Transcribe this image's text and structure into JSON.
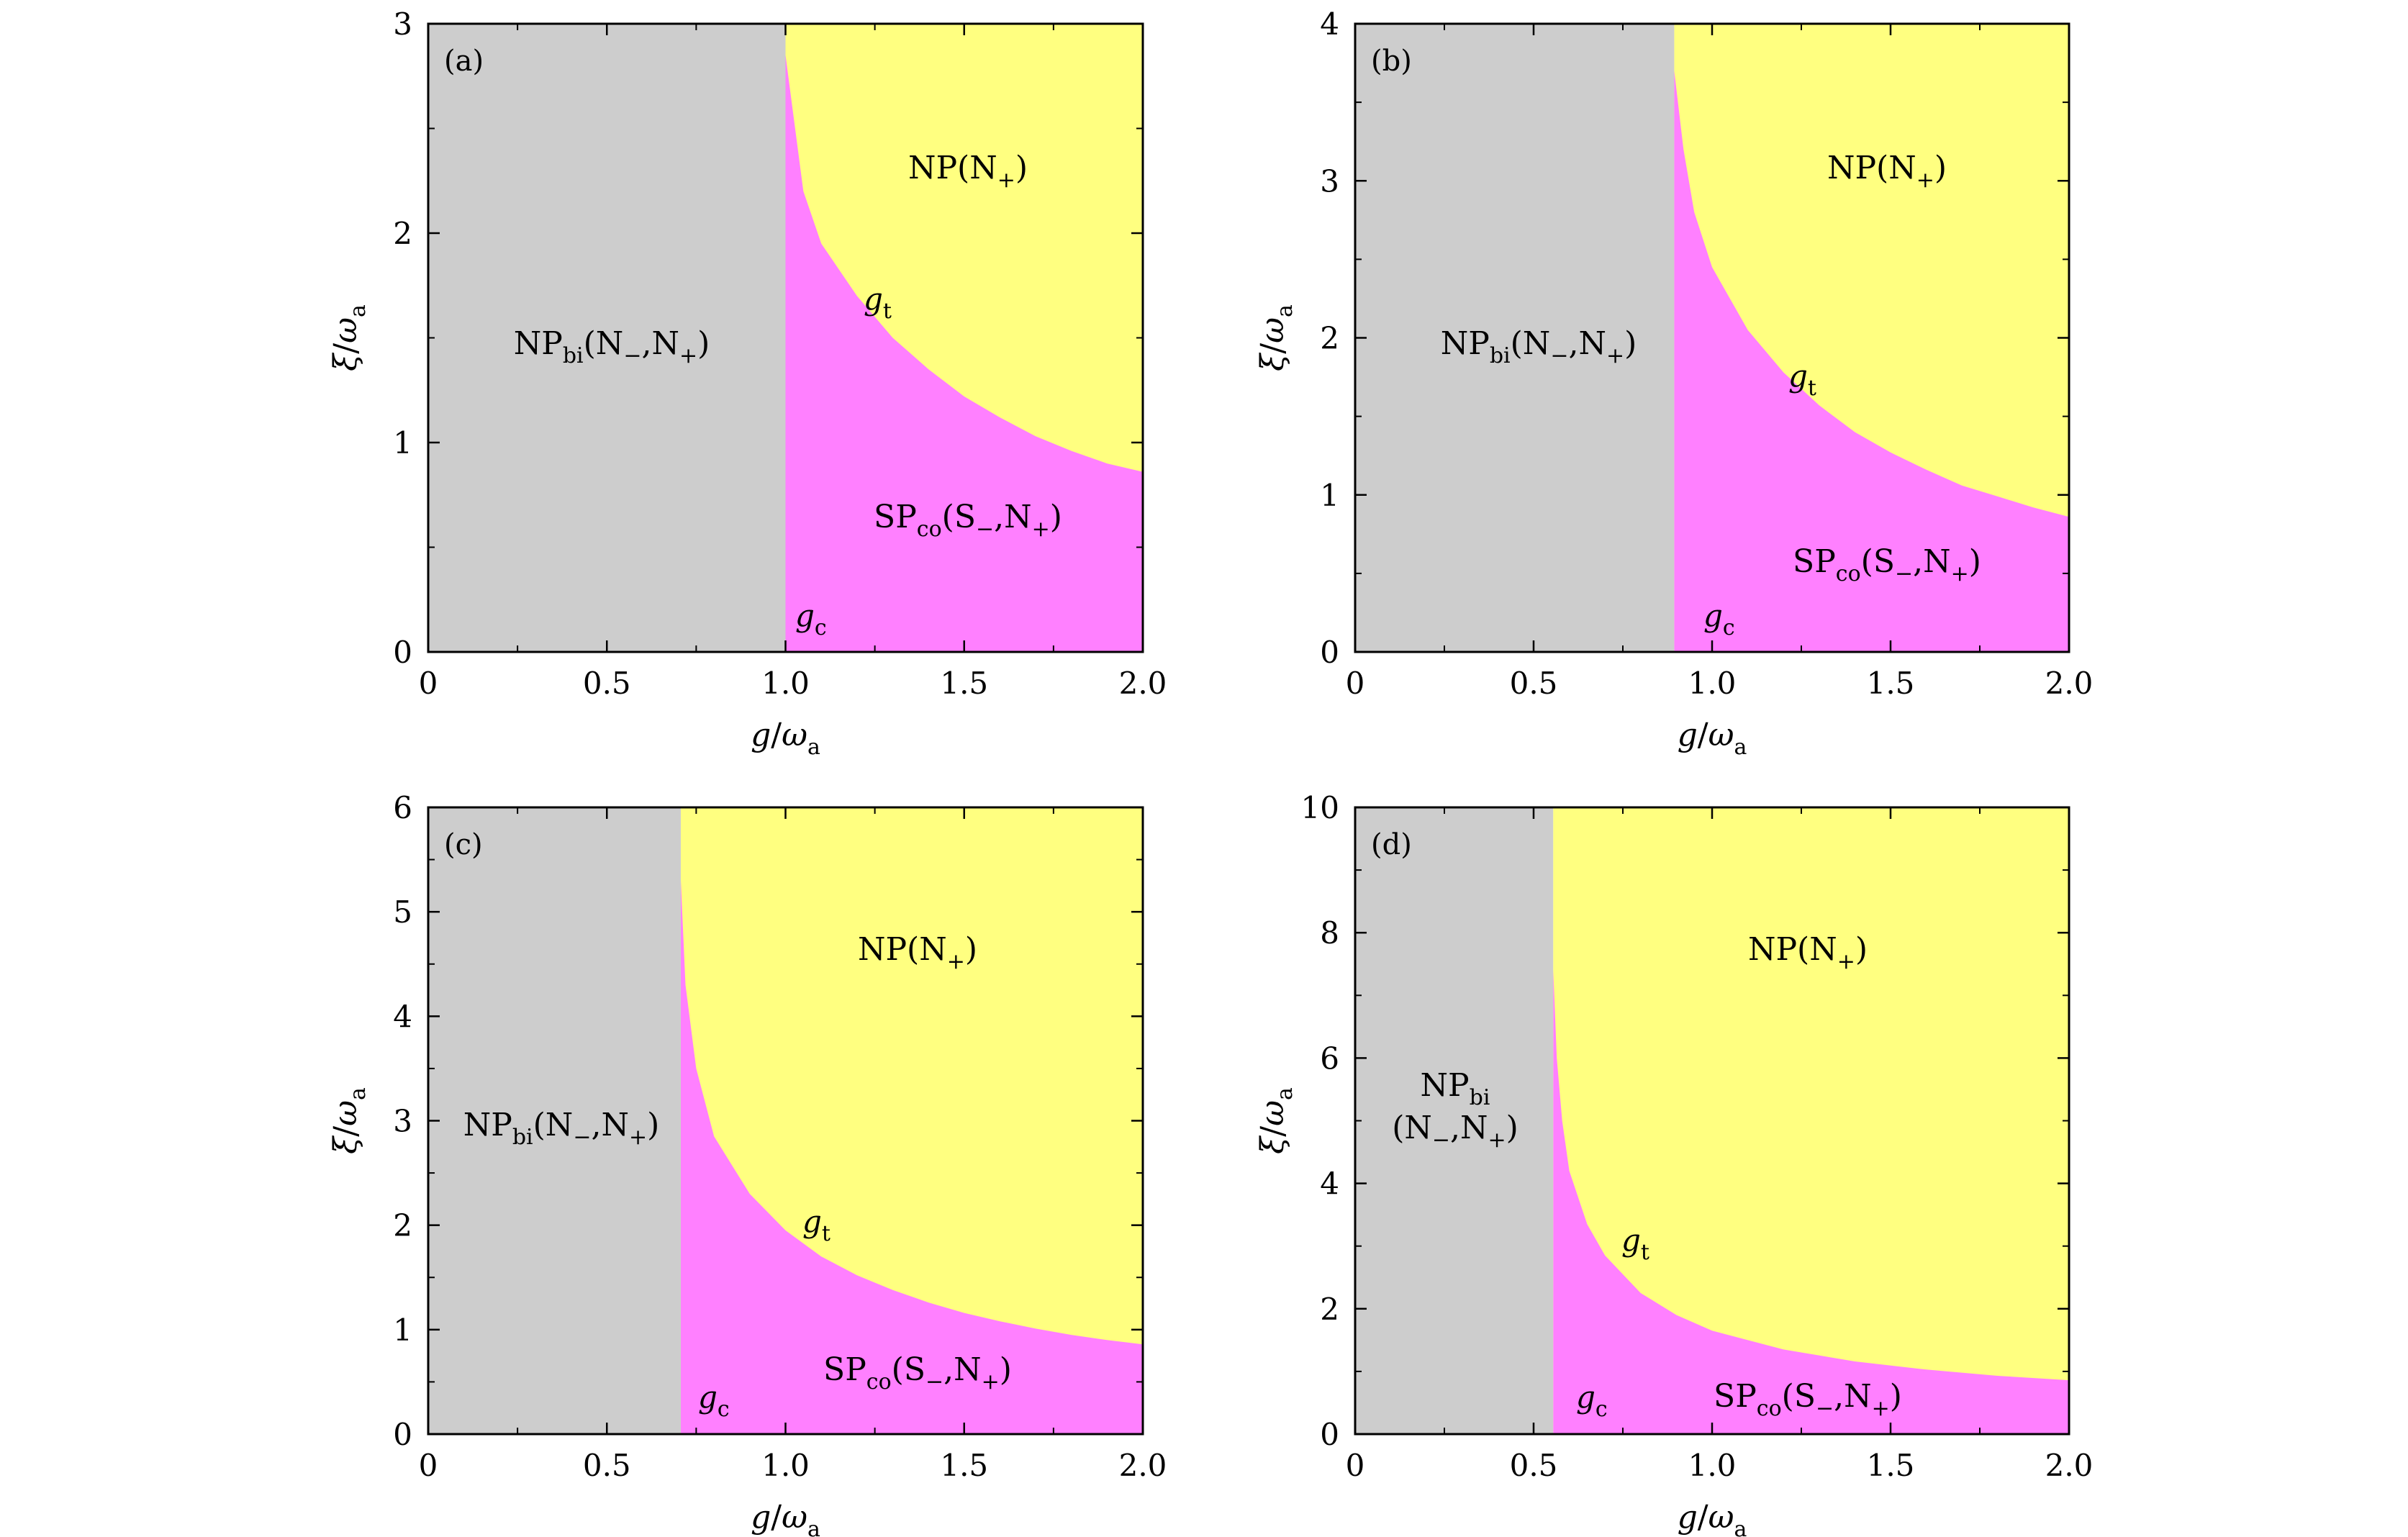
{
  "colors": {
    "gray": "#cdcdcd",
    "yellow": "#ffff80",
    "magenta": "#ff80ff",
    "axis": "#000000"
  },
  "chart_data": [
    {
      "type": "area",
      "panel_label": "(a)",
      "xlabel": {
        "var": "g",
        "sep": "/",
        "omega": "ω",
        "sub": "a"
      },
      "ylabel": {
        "var": "ξ",
        "sep": "/",
        "omega": "ω",
        "sub": "a"
      },
      "xlim": [
        0,
        2.0
      ],
      "ylim": [
        0,
        3
      ],
      "x_ticks": [
        "0",
        "0.5",
        "1.0",
        "1.5",
        "2.0"
      ],
      "y_ticks": [
        "0",
        "1",
        "2",
        "3"
      ],
      "g_c": 1.0,
      "g_t_curve": [
        [
          1.0,
          2.85
        ],
        [
          1.05,
          2.2
        ],
        [
          1.1,
          1.95
        ],
        [
          1.2,
          1.7
        ],
        [
          1.3,
          1.5
        ],
        [
          1.4,
          1.35
        ],
        [
          1.5,
          1.22
        ],
        [
          1.6,
          1.12
        ],
        [
          1.7,
          1.03
        ],
        [
          1.8,
          0.96
        ],
        [
          1.9,
          0.9
        ],
        [
          2.0,
          0.86
        ]
      ],
      "labels": {
        "bi": {
          "main": "NP",
          "sub": "bi",
          "rest": "(N",
          "minus": "−",
          "mid": ",N",
          "plus": "+",
          "close": ")"
        },
        "np": {
          "main": "NP(N",
          "plus": "+",
          "close": ")"
        },
        "sp": {
          "main": "SP",
          "sub": "co",
          "rest": "(S",
          "minus": "−",
          "mid": ",N",
          "plus": "+",
          "close": ")"
        },
        "gt": {
          "var": "g",
          "sub": "t"
        },
        "gc": {
          "var": "g",
          "sub": "c"
        }
      }
    },
    {
      "type": "area",
      "panel_label": "(b)",
      "xlabel": {
        "var": "g",
        "sep": "/",
        "omega": "ω",
        "sub": "a"
      },
      "ylabel": {
        "var": "ξ",
        "sep": "/",
        "omega": "ω",
        "sub": "a"
      },
      "xlim": [
        0,
        2.0
      ],
      "ylim": [
        0,
        4
      ],
      "x_ticks": [
        "0",
        "0.5",
        "1.0",
        "1.5",
        "2.0"
      ],
      "y_ticks": [
        "0",
        "1",
        "2",
        "3",
        "4"
      ],
      "g_c": 0.894,
      "g_t_curve": [
        [
          0.894,
          3.7
        ],
        [
          0.92,
          3.2
        ],
        [
          0.95,
          2.8
        ],
        [
          1.0,
          2.45
        ],
        [
          1.1,
          2.05
        ],
        [
          1.2,
          1.78
        ],
        [
          1.3,
          1.57
        ],
        [
          1.4,
          1.4
        ],
        [
          1.5,
          1.27
        ],
        [
          1.6,
          1.16
        ],
        [
          1.7,
          1.06
        ],
        [
          1.8,
          0.99
        ],
        [
          1.9,
          0.92
        ],
        [
          2.0,
          0.86
        ]
      ],
      "labels": {
        "bi": {
          "main": "NP",
          "sub": "bi",
          "rest": "(N",
          "minus": "−",
          "mid": ",N",
          "plus": "+",
          "close": ")"
        },
        "np": {
          "main": "NP(N",
          "plus": "+",
          "close": ")"
        },
        "sp": {
          "main": "SP",
          "sub": "co",
          "rest": "(S",
          "minus": "−",
          "mid": ",N",
          "plus": "+",
          "close": ")"
        },
        "gt": {
          "var": "g",
          "sub": "t"
        },
        "gc": {
          "var": "g",
          "sub": "c"
        }
      }
    },
    {
      "type": "area",
      "panel_label": "(c)",
      "xlabel": {
        "var": "g",
        "sep": "/",
        "omega": "ω",
        "sub": "a"
      },
      "ylabel": {
        "var": "ξ",
        "sep": "/",
        "omega": "ω",
        "sub": "a"
      },
      "xlim": [
        0,
        2.0
      ],
      "ylim": [
        0,
        6
      ],
      "x_ticks": [
        "0",
        "0.5",
        "1.0",
        "1.5",
        "2.0"
      ],
      "y_ticks": [
        "0",
        "1",
        "2",
        "3",
        "4",
        "5",
        "6"
      ],
      "g_c": 0.707,
      "g_t_curve": [
        [
          0.707,
          5.3
        ],
        [
          0.72,
          4.3
        ],
        [
          0.75,
          3.5
        ],
        [
          0.8,
          2.85
        ],
        [
          0.9,
          2.3
        ],
        [
          1.0,
          1.95
        ],
        [
          1.1,
          1.7
        ],
        [
          1.2,
          1.52
        ],
        [
          1.3,
          1.38
        ],
        [
          1.4,
          1.26
        ],
        [
          1.5,
          1.16
        ],
        [
          1.6,
          1.08
        ],
        [
          1.7,
          1.01
        ],
        [
          1.8,
          0.95
        ],
        [
          1.9,
          0.9
        ],
        [
          2.0,
          0.86
        ]
      ],
      "labels": {
        "bi": {
          "main": "NP",
          "sub": "bi",
          "rest": "(N",
          "minus": "−",
          "mid": ",N",
          "plus": "+",
          "close": ")"
        },
        "np": {
          "main": "NP(N",
          "plus": "+",
          "close": ")"
        },
        "sp": {
          "main": "SP",
          "sub": "co",
          "rest": "(S",
          "minus": "−",
          "mid": ",N",
          "plus": "+",
          "close": ")"
        },
        "gt": {
          "var": "g",
          "sub": "t"
        },
        "gc": {
          "var": "g",
          "sub": "c"
        }
      }
    },
    {
      "type": "area",
      "panel_label": "(d)",
      "xlabel": {
        "var": "g",
        "sep": "/",
        "omega": "ω",
        "sub": "a"
      },
      "ylabel": {
        "var": "ξ",
        "sep": "/",
        "omega": "ω",
        "sub": "a"
      },
      "xlim": [
        0,
        2.0
      ],
      "ylim": [
        0,
        10
      ],
      "x_ticks": [
        "0",
        "0.5",
        "1.0",
        "1.5",
        "2.0"
      ],
      "y_ticks": [
        "0",
        "2",
        "4",
        "6",
        "8",
        "10"
      ],
      "g_c": 0.555,
      "g_t_curve": [
        [
          0.555,
          7.4
        ],
        [
          0.565,
          6.0
        ],
        [
          0.58,
          5.0
        ],
        [
          0.6,
          4.2
        ],
        [
          0.65,
          3.35
        ],
        [
          0.7,
          2.85
        ],
        [
          0.8,
          2.25
        ],
        [
          0.9,
          1.9
        ],
        [
          1.0,
          1.65
        ],
        [
          1.2,
          1.35
        ],
        [
          1.4,
          1.16
        ],
        [
          1.6,
          1.03
        ],
        [
          1.8,
          0.93
        ],
        [
          2.0,
          0.86
        ]
      ],
      "labels": {
        "bi_line1": {
          "main": "NP",
          "sub": "bi"
        },
        "bi_line2": {
          "rest": "(N",
          "minus": "−",
          "mid": ",N",
          "plus": "+",
          "close": ")"
        },
        "np": {
          "main": "NP(N",
          "plus": "+",
          "close": ")"
        },
        "sp": {
          "main": "SP",
          "sub": "co",
          "rest": "(S",
          "minus": "−",
          "mid": ",N",
          "plus": "+",
          "close": ")"
        },
        "gt": {
          "var": "g",
          "sub": "t"
        },
        "gc": {
          "var": "g",
          "sub": "c"
        }
      }
    }
  ]
}
